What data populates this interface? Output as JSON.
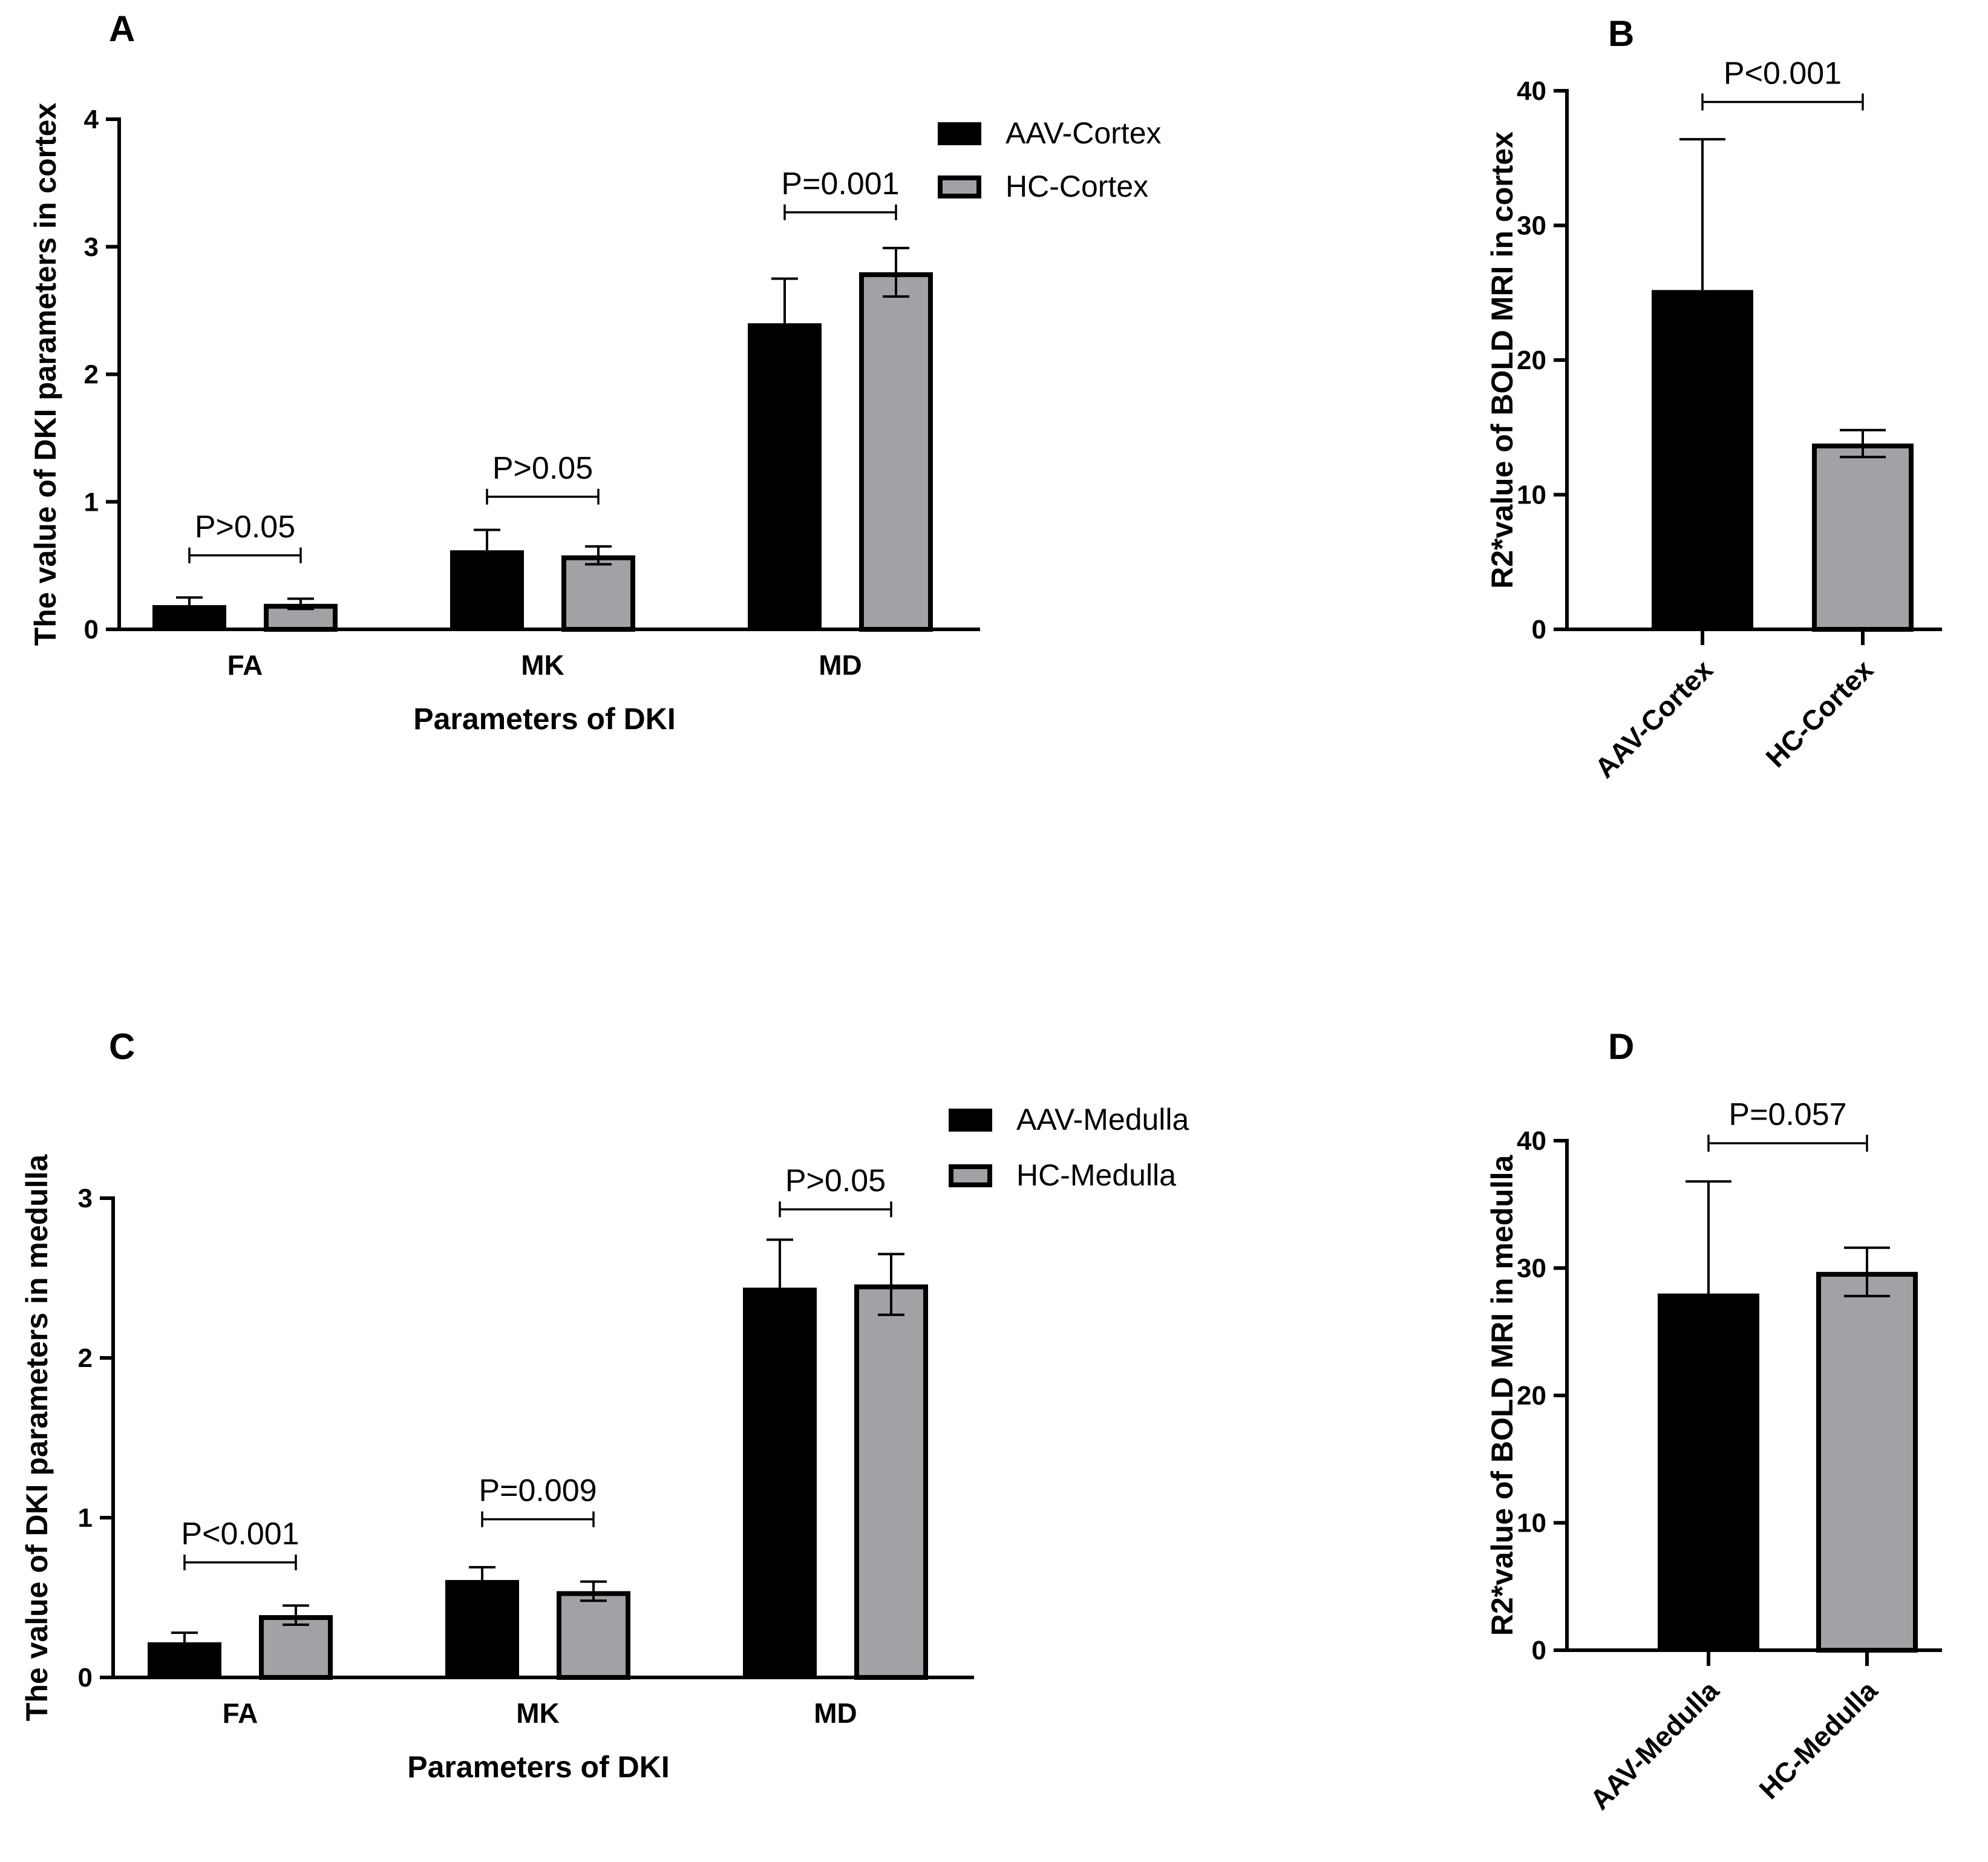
{
  "colors": {
    "aav": "#000000",
    "hc": "#a1a1a6",
    "axis": "#000000",
    "background": "#ffffff"
  },
  "chart_data": [
    {
      "panel": "A",
      "type": "bar",
      "xlabel": "Parameters of DKI",
      "ylabel": "The value of DKI parameters in cortex",
      "ylim": [
        0,
        4
      ],
      "yticks": [
        0,
        1,
        2,
        3,
        4
      ],
      "categories": [
        "FA",
        "MK",
        "MD"
      ],
      "legend": [
        "AAV-Cortex",
        "HC-Cortex"
      ],
      "series": [
        {
          "name": "AAV-Cortex",
          "values": [
            0.19,
            0.62,
            2.4
          ],
          "errors": [
            0.06,
            0.16,
            0.35
          ]
        },
        {
          "name": "HC-Cortex",
          "values": [
            0.2,
            0.58,
            2.8
          ],
          "errors": [
            0.04,
            0.07,
            0.19
          ]
        }
      ],
      "annotations": [
        {
          "category": 0,
          "text": "P>0.05",
          "level": 0.58
        },
        {
          "category": 1,
          "text": "P>0.05",
          "level": 1.04
        },
        {
          "category": 2,
          "text": "P=0.001",
          "level": 3.27
        }
      ]
    },
    {
      "panel": "B",
      "type": "bar",
      "xlabel": "",
      "ylabel": "R2*value of BOLD MRI  in cortex",
      "ylim": [
        0,
        40
      ],
      "yticks": [
        0,
        10,
        20,
        30,
        40
      ],
      "categories": [
        "AAV-Cortex",
        "HC-Cortex"
      ],
      "series": [
        {
          "name": "R2*",
          "values": [
            25.2,
            13.8
          ],
          "errors": [
            11.2,
            1.0
          ]
        }
      ],
      "annotations": [
        {
          "from": 0,
          "to": 1,
          "text": "P<0.001",
          "level": 39.8
        }
      ]
    },
    {
      "panel": "C",
      "type": "bar",
      "xlabel": "Parameters of DKI",
      "ylabel": "The value of DKI parameters in medulla",
      "ylim": [
        0,
        3
      ],
      "yticks": [
        0,
        1,
        2,
        3
      ],
      "categories": [
        "FA",
        "MK",
        "MD"
      ],
      "legend": [
        "AAV-Medulla",
        "HC-Medulla"
      ],
      "series": [
        {
          "name": "AAV-Medulla",
          "values": [
            0.22,
            0.61,
            2.44
          ],
          "errors": [
            0.06,
            0.08,
            0.3
          ]
        },
        {
          "name": "HC-Medulla",
          "values": [
            0.39,
            0.54,
            2.46
          ],
          "errors": [
            0.06,
            0.06,
            0.19
          ]
        }
      ],
      "annotations": [
        {
          "category": 0,
          "text": "P<0.001",
          "level": 0.72
        },
        {
          "category": 1,
          "text": "P=0.009",
          "level": 0.99
        },
        {
          "category": 2,
          "text": "P>0.05",
          "level": 2.93
        }
      ]
    },
    {
      "panel": "D",
      "type": "bar",
      "xlabel": "",
      "ylabel": "R2*value of BOLD MRI  in medulla",
      "ylim": [
        0,
        40
      ],
      "yticks": [
        0,
        10,
        20,
        30,
        40
      ],
      "categories": [
        "AAV-Medulla",
        "HC-Medulla"
      ],
      "series": [
        {
          "name": "R2*",
          "values": [
            28.0,
            29.7
          ],
          "errors": [
            8.8,
            1.9
          ]
        }
      ],
      "annotations": [
        {
          "from": 0,
          "to": 1,
          "text": "P=0.057",
          "level": 39.8
        }
      ]
    }
  ]
}
